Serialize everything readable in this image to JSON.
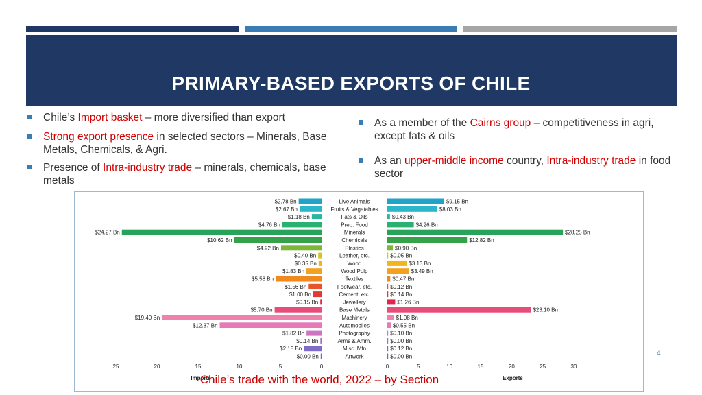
{
  "slide": {
    "title": "PRIMARY-BASED EXPORTS OF CHILE",
    "page_number": "4",
    "caption": "Chile’s trade with the world, 2022 – by Section",
    "accent_colors": [
      "#1f3864",
      "#3a7db5",
      "#a6a6a6"
    ]
  },
  "bullets_left": [
    {
      "pre": "Chile’s ",
      "hl": "Import basket",
      "post": " – more diversified than export"
    },
    {
      "pre": "",
      "hl": "Strong export presence",
      "post": " in selected sectors – Minerals, Base Metals, Chemicals,  & Agri."
    },
    {
      "pre": "Presence of ",
      "hl": "Intra-industry trade",
      "post": " – minerals, chemicals, base metals"
    }
  ],
  "bullets_right": [
    {
      "t1": "As a member of the ",
      "h1": "Cairns group",
      "t2": " – competitiveness in agri, except fats & oils",
      "h2": "",
      "t3": ""
    },
    {
      "t1": "As an ",
      "h1": "upper-middle income",
      "t2": " country, ",
      "h2": "Intra-industry trade",
      "t3": " in food sector"
    }
  ],
  "chart_data": {
    "type": "bar",
    "orientation": "horizontal-butterfly",
    "categories": [
      "Live Animals",
      "Fruits & Vegetables",
      "Fats & Oils",
      "Prep. Food",
      "Minerals",
      "Chemicals",
      "Plastics",
      "Leather, etc.",
      "Wood",
      "Wood Pulp",
      "Textiles",
      "Footwear, etc.",
      "Cement, etc.",
      "Jewellery",
      "Base Metals",
      "Machinery",
      "Automobiles",
      "Photography",
      "Arms & Amm.",
      "Misc. Mfn",
      "Artwork"
    ],
    "colors": [
      "#1fa3c6",
      "#2bb7c9",
      "#2ab5a0",
      "#2ab071",
      "#27a35a",
      "#35a24a",
      "#7db73a",
      "#dcc21f",
      "#f0b51e",
      "#f3a11f",
      "#f08a1e",
      "#e8552a",
      "#e03a34",
      "#e0264d",
      "#e84c78",
      "#ee82aa",
      "#e679b6",
      "#cf73c3",
      "#a06dc9",
      "#7d6cc8",
      "#6b6ac9"
    ],
    "series": [
      {
        "name": "Imports",
        "unit": "Bn",
        "values": [
          2.78,
          2.67,
          1.18,
          4.76,
          24.27,
          10.62,
          4.92,
          0.4,
          0.35,
          1.83,
          5.58,
          1.56,
          1.0,
          0.15,
          5.7,
          19.4,
          12.37,
          1.82,
          0.14,
          2.15,
          0.0
        ],
        "labels": [
          "$2.78 Bn",
          "$2.67 Bn",
          "$1.18 Bn",
          "$4.76 Bn",
          "$24.27 Bn",
          "$10.62 Bn",
          "$4.92 Bn",
          "$0.40 Bn",
          "$0.35 Bn",
          "$1.83 Bn",
          "$5.58 Bn",
          "$1.56 Bn",
          "$1.00 Bn",
          "$0.15 Bn",
          "$5.70 Bn",
          "$19.40 Bn",
          "$12.37 Bn",
          "$1.82 Bn",
          "$0.14 Bn",
          "$2.15 Bn",
          "$0.00 Bn"
        ]
      },
      {
        "name": "Exports",
        "unit": "Bn",
        "values": [
          9.15,
          8.03,
          0.43,
          4.26,
          28.25,
          12.82,
          0.9,
          0.05,
          3.13,
          3.49,
          0.47,
          0.12,
          0.14,
          1.26,
          23.1,
          1.08,
          0.55,
          0.1,
          0.0,
          0.12,
          0.0
        ],
        "labels": [
          "$9.15 Bn",
          "$8.03 Bn",
          "$0.43 Bn",
          "$4.26 Bn",
          "$28.25 Bn",
          "$12.82 Bn",
          "$0.90 Bn",
          "$0.05 Bn",
          "$3.13 Bn",
          "$3.49 Bn",
          "$0.47 Bn",
          "$0.12 Bn",
          "$0.14 Bn",
          "$1.26 Bn",
          "$23.10 Bn",
          "$1.08 Bn",
          "$0.55 Bn",
          "$0.10 Bn",
          "$0.00 Bn",
          "$0.12 Bn",
          "$0.00 Bn"
        ]
      }
    ],
    "imports_ticks": [
      "25",
      "20",
      "15",
      "10",
      "5",
      "0"
    ],
    "exports_ticks": [
      "0",
      "5",
      "10",
      "15",
      "20",
      "25",
      "30"
    ],
    "imports_xlabel": "Imports",
    "exports_xlabel": "Exports",
    "imports_xlim": [
      0,
      25
    ],
    "exports_xlim": [
      0,
      30
    ],
    "grid": false
  }
}
